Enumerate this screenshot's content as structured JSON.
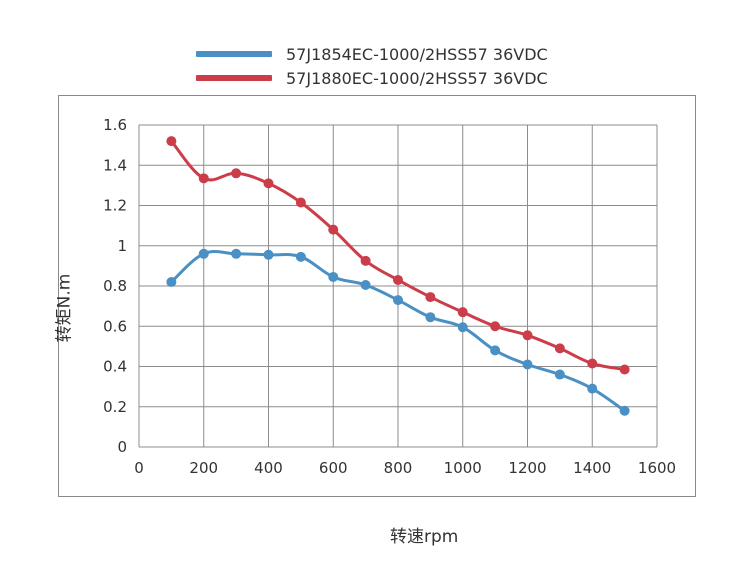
{
  "chart_data": {
    "type": "line",
    "title": "",
    "xlabel": "转速rpm",
    "ylabel": "转矩N.m",
    "xlim": [
      0,
      1600
    ],
    "ylim": [
      0,
      1.6
    ],
    "xticks": [
      0,
      200,
      400,
      600,
      800,
      1000,
      1200,
      1400,
      1600
    ],
    "yticks": [
      0,
      0.2,
      0.4,
      0.6,
      0.8,
      1,
      1.2,
      1.4,
      1.6
    ],
    "grid": true,
    "legend_position": "top",
    "series": [
      {
        "name": "57J1854EC-1000/2HSS57  36VDC",
        "color": "#4a90c4",
        "x": [
          100,
          200,
          300,
          400,
          500,
          600,
          700,
          800,
          900,
          1000,
          1100,
          1200,
          1300,
          1400,
          1500
        ],
        "values": [
          0.82,
          0.96,
          0.96,
          0.955,
          0.945,
          0.845,
          0.805,
          0.73,
          0.645,
          0.595,
          0.48,
          0.41,
          0.36,
          0.29,
          0.18
        ]
      },
      {
        "name": "57J1880EC-1000/2HSS57  36VDC",
        "color": "#cc3d4a",
        "x": [
          100,
          200,
          300,
          400,
          500,
          600,
          700,
          800,
          900,
          1000,
          1100,
          1200,
          1300,
          1400,
          1500
        ],
        "values": [
          1.52,
          1.335,
          1.36,
          1.31,
          1.215,
          1.08,
          0.925,
          0.83,
          0.745,
          0.67,
          0.6,
          0.555,
          0.49,
          0.415,
          0.385
        ]
      }
    ]
  }
}
